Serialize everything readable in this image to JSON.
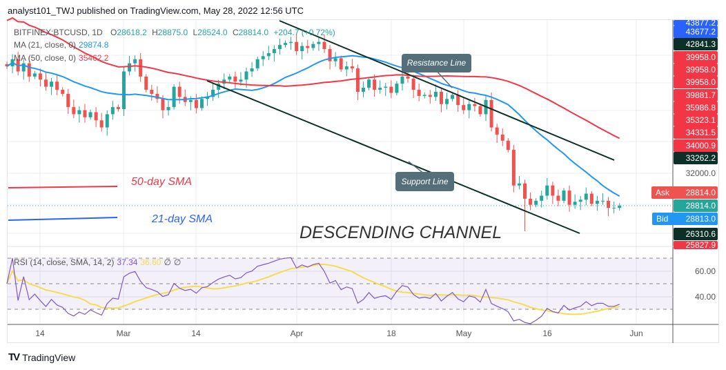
{
  "header": {
    "published": "analyst101_TWJ published on TradingView.com, May 28, 2022 12:56 UTC"
  },
  "legend": {
    "symbol": "BITFINEX:BTCUSD, 1D",
    "o_label": "O",
    "o": "28618.2",
    "h_label": "H",
    "h": "28875.0",
    "l_label": "L",
    "l": "28524.0",
    "c_label": "C",
    "c": "28814.0",
    "change": "+204.7 (+0.72%)",
    "ma21_label": "MA (21, close, 0)",
    "ma21": "29874.8",
    "ma50_label": "MA (50, close, 0)",
    "ma50": "35462.2",
    "rsi_label": "RSI (14, close, SMA, 14, 2)",
    "rsi": "37.34",
    "rsi_sma": "36.60",
    "na1": "∅",
    "na2": "∅"
  },
  "price_tags": [
    {
      "text": "43877.2",
      "color": "#2962ff"
    },
    {
      "text": "43677.2",
      "color": "#2962ff"
    },
    {
      "text": "42841.3",
      "color": "#0c3027"
    },
    {
      "text": "39958.0",
      "color": "#f23645"
    },
    {
      "text": "39958.0",
      "color": "#f23645"
    },
    {
      "text": "39958.0",
      "color": "#f23645"
    },
    {
      "text": "39881.7",
      "color": "#f23645"
    },
    {
      "text": "35986.8",
      "color": "#f23645"
    },
    {
      "text": "35323.1",
      "color": "#f23645"
    },
    {
      "text": "34331.5",
      "color": "#f23645"
    },
    {
      "text": "34000.9",
      "color": "#f23645"
    },
    {
      "text": "33262.2",
      "color": "#0c3027"
    }
  ],
  "axis_price": "32000.0",
  "ask": {
    "label": "Ask",
    "value": "28814.0"
  },
  "last": "28814.0",
  "bid": {
    "label": "Bid",
    "value": "28813.0"
  },
  "low_tags": [
    {
      "text": "26310.6",
      "color": "#0c3027"
    },
    {
      "text": "25827.9",
      "color": "#f23645"
    }
  ],
  "rsi_axis": [
    "60.00",
    "40.00"
  ],
  "time_axis": [
    "14",
    "Mar",
    "14",
    "Apr",
    "18",
    "May",
    "16",
    "Jun"
  ],
  "annotations": {
    "resistance": "Resistance Line",
    "support": "Support Line",
    "sma50": "50-day SMA",
    "sma21": "21-day SMA",
    "channel": "DESCENDING CHANNEL"
  },
  "footer": {
    "brand": "TradingView"
  },
  "colors": {
    "up": "#26a69a",
    "down": "#ef5350",
    "ma21": "#2196f3",
    "ma50": "#f23645",
    "rsi": "#7e57c2",
    "rsi_sma": "#f5dd4f"
  },
  "chart_data": {
    "type": "candlestick",
    "symbol": "BITFINEX:BTCUSD",
    "interval": "1D",
    "closes": [
      42500,
      43200,
      42000,
      42800,
      41500,
      41800,
      41200,
      40500,
      41000,
      40200,
      39800,
      38500,
      37800,
      38200,
      37500,
      38000,
      37200,
      36500,
      37800,
      38500,
      38300,
      42000,
      42800,
      43200,
      41500,
      40200,
      39800,
      39300,
      38200,
      38500,
      40500,
      39500,
      39000,
      39200,
      38400,
      39300,
      39500,
      40200,
      40800,
      41200,
      41500,
      41000,
      41200,
      42000,
      42300,
      43200,
      43500,
      43800,
      44200,
      44600,
      44800,
      44900,
      44000,
      44500,
      44300,
      44700,
      44900,
      44200,
      43000,
      43300,
      42200,
      42500,
      42300,
      40000,
      40400,
      41200,
      40200,
      40400,
      40500,
      39900,
      40800,
      41500,
      41300,
      40200,
      39600,
      39700,
      39500,
      40000,
      38800,
      39300,
      39700,
      38700,
      38200,
      38800,
      38600,
      37800,
      39200,
      36500,
      35800,
      35200,
      34300,
      30800,
      31000,
      29500,
      28900,
      29300,
      29800,
      30800,
      29800,
      29300,
      30300,
      28900,
      29200,
      29400,
      30000,
      29000,
      29300,
      29300,
      28600,
      28600,
      28814
    ],
    "indicators": [
      "MA 21",
      "MA 50",
      "RSI 14 with SMA 14"
    ],
    "rsi_levels": [
      70,
      30
    ]
  }
}
